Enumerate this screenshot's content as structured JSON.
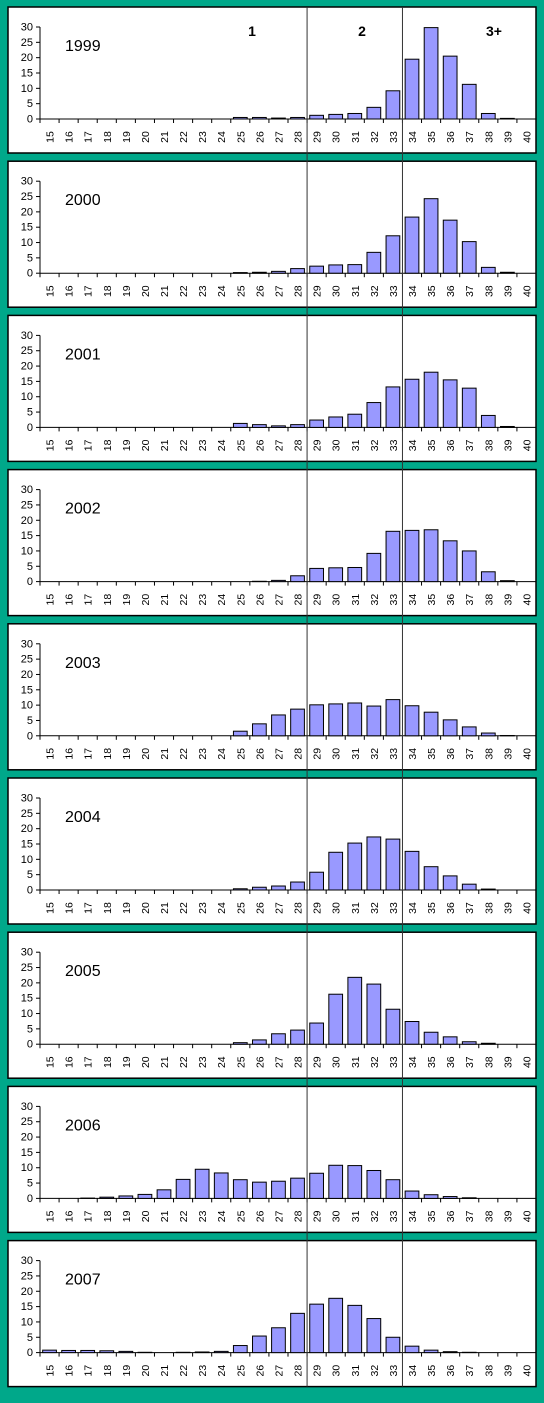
{
  "zone_labels": [
    "1",
    "2",
    "3+"
  ],
  "chart_data": [
    {
      "type": "bar",
      "title": "1999",
      "categories": [
        "15",
        "16",
        "17",
        "18",
        "19",
        "20",
        "21",
        "22",
        "23",
        "24",
        "25",
        "26",
        "27",
        "28",
        "29",
        "30",
        "31",
        "32",
        "33",
        "34",
        "35",
        "36",
        "37",
        "38",
        "39",
        "40"
      ],
      "values": [
        0,
        0,
        0,
        0,
        0,
        0,
        0,
        0,
        0,
        0,
        0.5,
        0.5,
        0.3,
        0.5,
        1.2,
        1.5,
        1.8,
        3.8,
        9.2,
        19.5,
        29.8,
        20.5,
        11.3,
        1.8,
        0.2,
        0
      ],
      "ylim": [
        0,
        30
      ],
      "yticks": [
        0,
        5,
        10,
        15,
        20,
        25,
        30
      ],
      "bar_color": "#9999ff"
    },
    {
      "type": "bar",
      "title": "2000",
      "categories": [
        "15",
        "16",
        "17",
        "18",
        "19",
        "20",
        "21",
        "22",
        "23",
        "24",
        "25",
        "26",
        "27",
        "28",
        "29",
        "30",
        "31",
        "32",
        "33",
        "34",
        "35",
        "36",
        "37",
        "38",
        "39",
        "40"
      ],
      "values": [
        0,
        0,
        0,
        0,
        0,
        0,
        0,
        0,
        0,
        0,
        0.2,
        0.3,
        0.6,
        1.5,
        2.3,
        2.7,
        2.8,
        6.8,
        12.2,
        18.3,
        24.3,
        17.3,
        10.3,
        1.9,
        0.3,
        0
      ],
      "ylim": [
        0,
        30
      ],
      "yticks": [
        0,
        5,
        10,
        15,
        20,
        25,
        30
      ],
      "bar_color": "#9999ff"
    },
    {
      "type": "bar",
      "title": "2001",
      "categories": [
        "15",
        "16",
        "17",
        "18",
        "19",
        "20",
        "21",
        "22",
        "23",
        "24",
        "25",
        "26",
        "27",
        "28",
        "29",
        "30",
        "31",
        "32",
        "33",
        "34",
        "35",
        "36",
        "37",
        "38",
        "39",
        "40"
      ],
      "values": [
        0,
        0,
        0,
        0,
        0,
        0,
        0,
        0,
        0,
        0,
        1.3,
        0.9,
        0.5,
        0.9,
        2.4,
        3.4,
        4.3,
        8.1,
        13.2,
        15.7,
        18.0,
        15.5,
        12.8,
        3.9,
        0.3,
        0
      ],
      "ylim": [
        0,
        30
      ],
      "yticks": [
        0,
        5,
        10,
        15,
        20,
        25,
        30
      ],
      "bar_color": "#9999ff"
    },
    {
      "type": "bar",
      "title": "2002",
      "categories": [
        "15",
        "16",
        "17",
        "18",
        "19",
        "20",
        "21",
        "22",
        "23",
        "24",
        "25",
        "26",
        "27",
        "28",
        "29",
        "30",
        "31",
        "32",
        "33",
        "34",
        "35",
        "36",
        "37",
        "38",
        "39",
        "40"
      ],
      "values": [
        0,
        0,
        0,
        0,
        0,
        0,
        0,
        0,
        0,
        0,
        0,
        0.1,
        0.4,
        1.9,
        4.3,
        4.5,
        4.6,
        9.2,
        16.4,
        16.7,
        16.9,
        13.3,
        10.0,
        3.2,
        0.3,
        0
      ],
      "ylim": [
        0,
        30
      ],
      "yticks": [
        0,
        5,
        10,
        15,
        20,
        25,
        30
      ],
      "bar_color": "#9999ff"
    },
    {
      "type": "bar",
      "title": "2003",
      "categories": [
        "15",
        "16",
        "17",
        "18",
        "19",
        "20",
        "21",
        "22",
        "23",
        "24",
        "25",
        "26",
        "27",
        "28",
        "29",
        "30",
        "31",
        "32",
        "33",
        "34",
        "35",
        "36",
        "37",
        "38",
        "39",
        "40"
      ],
      "values": [
        0,
        0,
        0,
        0,
        0,
        0,
        0,
        0,
        0,
        0,
        1.5,
        3.9,
        6.8,
        8.7,
        10.1,
        10.4,
        10.7,
        9.7,
        11.8,
        9.8,
        7.7,
        5.2,
        2.9,
        0.9,
        0.1,
        0
      ],
      "ylim": [
        0,
        30
      ],
      "yticks": [
        0,
        5,
        10,
        15,
        20,
        25,
        30
      ],
      "bar_color": "#9999ff"
    },
    {
      "type": "bar",
      "title": "2004",
      "categories": [
        "15",
        "16",
        "17",
        "18",
        "19",
        "20",
        "21",
        "22",
        "23",
        "24",
        "25",
        "26",
        "27",
        "28",
        "29",
        "30",
        "31",
        "32",
        "33",
        "34",
        "35",
        "36",
        "37",
        "38",
        "39",
        "40"
      ],
      "values": [
        0,
        0,
        0,
        0,
        0,
        0,
        0,
        0,
        0,
        0,
        0.4,
        0.9,
        1.3,
        2.6,
        5.8,
        12.3,
        15.3,
        17.3,
        16.6,
        12.6,
        7.6,
        4.6,
        1.9,
        0.3,
        0,
        0
      ],
      "ylim": [
        0,
        30
      ],
      "yticks": [
        0,
        5,
        10,
        15,
        20,
        25,
        30
      ],
      "bar_color": "#9999ff"
    },
    {
      "type": "bar",
      "title": "2005",
      "categories": [
        "15",
        "16",
        "17",
        "18",
        "19",
        "20",
        "21",
        "22",
        "23",
        "24",
        "25",
        "26",
        "27",
        "28",
        "29",
        "30",
        "31",
        "32",
        "33",
        "34",
        "35",
        "36",
        "37",
        "38",
        "39",
        "40"
      ],
      "values": [
        0,
        0,
        0,
        0,
        0,
        0,
        0,
        0,
        0,
        0,
        0.5,
        1.4,
        3.4,
        4.6,
        6.9,
        16.3,
        21.8,
        19.6,
        11.4,
        7.4,
        3.9,
        2.4,
        0.8,
        0.3,
        0,
        0
      ],
      "ylim": [
        0,
        30
      ],
      "yticks": [
        0,
        5,
        10,
        15,
        20,
        25,
        30
      ],
      "bar_color": "#9999ff"
    },
    {
      "type": "bar",
      "title": "2006",
      "categories": [
        "15",
        "16",
        "17",
        "18",
        "19",
        "20",
        "21",
        "22",
        "23",
        "24",
        "25",
        "26",
        "27",
        "28",
        "29",
        "30",
        "31",
        "32",
        "33",
        "34",
        "35",
        "36",
        "37",
        "38",
        "39",
        "40"
      ],
      "values": [
        0,
        0,
        0.1,
        0.4,
        0.8,
        1.3,
        2.8,
        6.2,
        9.5,
        8.3,
        6.1,
        5.3,
        5.6,
        6.6,
        8.2,
        10.8,
        10.7,
        9.1,
        6.1,
        2.4,
        1.2,
        0.6,
        0.2,
        0,
        0,
        0
      ],
      "ylim": [
        0,
        30
      ],
      "yticks": [
        0,
        5,
        10,
        15,
        20,
        25,
        30
      ],
      "bar_color": "#9999ff"
    },
    {
      "type": "bar",
      "title": "2007",
      "categories": [
        "15",
        "16",
        "17",
        "18",
        "19",
        "20",
        "21",
        "22",
        "23",
        "24",
        "25",
        "26",
        "27",
        "28",
        "29",
        "30",
        "31",
        "32",
        "33",
        "34",
        "35",
        "36",
        "37",
        "38",
        "39",
        "40"
      ],
      "values": [
        0.8,
        0.7,
        0.7,
        0.6,
        0.4,
        0.1,
        0,
        0.1,
        0.2,
        0.4,
        2.3,
        5.4,
        8.1,
        12.8,
        15.8,
        17.7,
        15.4,
        11.1,
        5.0,
        2.1,
        0.8,
        0.3,
        0.1,
        0,
        0,
        0
      ],
      "ylim": [
        0,
        30
      ],
      "yticks": [
        0,
        5,
        10,
        15,
        20,
        25,
        30
      ],
      "bar_color": "#9999ff"
    }
  ]
}
